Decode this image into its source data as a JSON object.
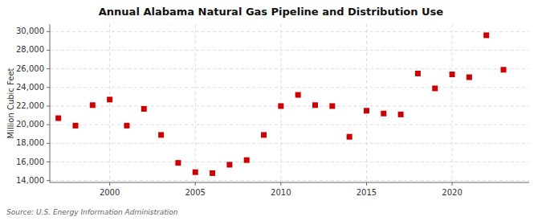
{
  "chart_data": {
    "type": "scatter",
    "title": "Annual Alabama Natural Gas Pipeline and Distribution Use",
    "ylabel": "Million Cubic Feet",
    "source": "Source: U.S. Energy Information Administration",
    "color": "#cc0000",
    "marker": "square",
    "grid": true,
    "xlim": [
      1996.5,
      2024.5
    ],
    "ylim": [
      13800,
      30800
    ],
    "xticks": [
      2000,
      2005,
      2010,
      2015,
      2020
    ],
    "yticks": [
      {
        "value": 14000,
        "label": "14,000"
      },
      {
        "value": 16000,
        "label": "16,000"
      },
      {
        "value": 18000,
        "label": "18,000"
      },
      {
        "value": 20000,
        "label": "20,000"
      },
      {
        "value": 22000,
        "label": "22,000"
      },
      {
        "value": 24000,
        "label": "24,000"
      },
      {
        "value": 26000,
        "label": "26,000"
      },
      {
        "value": 28000,
        "label": "28,000"
      },
      {
        "value": 30000,
        "label": "30,000"
      }
    ],
    "x": [
      1997,
      1998,
      1999,
      2000,
      2001,
      2002,
      2003,
      2004,
      2005,
      2006,
      2007,
      2008,
      2009,
      2010,
      2011,
      2012,
      2013,
      2014,
      2015,
      2016,
      2017,
      2018,
      2019,
      2020,
      2021,
      2022,
      2023
    ],
    "values": [
      20700,
      19900,
      22100,
      22700,
      19900,
      21700,
      18900,
      15900,
      14900,
      14800,
      15700,
      16200,
      18900,
      22000,
      23200,
      22100,
      22000,
      18700,
      21500,
      21200,
      21100,
      25500,
      23900,
      25400,
      25100,
      29600,
      25900
    ]
  }
}
